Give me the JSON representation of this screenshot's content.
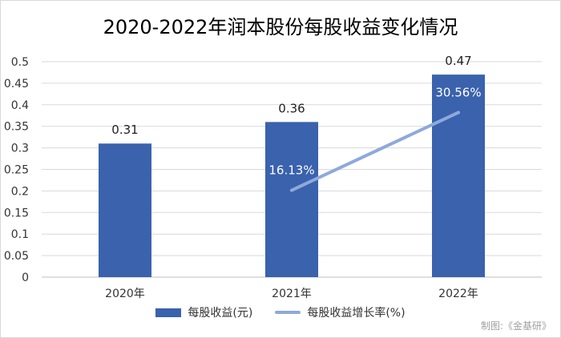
{
  "chart_data": {
    "type": "bar",
    "title": "2020-2022年润本股份每股收益变化情况",
    "categories": [
      "2020年",
      "2021年",
      "2022年"
    ],
    "series": [
      {
        "name": "每股收益(元)",
        "type": "bar",
        "values": [
          0.31,
          0.36,
          0.47
        ],
        "data_labels": [
          "0.31",
          "0.36",
          "0.47"
        ],
        "color": "#3a62ad"
      },
      {
        "name": "每股收益增长率(%)",
        "type": "line",
        "values": [
          null,
          16.13,
          30.56
        ],
        "data_labels": [
          null,
          "16.13%",
          "30.56%"
        ],
        "color": "#8ea9db"
      }
    ],
    "y_ticks": [
      "0",
      "0.05",
      "0.1",
      "0.15",
      "0.2",
      "0.25",
      "0.3",
      "0.35",
      "0.4",
      "0.45",
      "0.5"
    ],
    "ylim": [
      0,
      0.5
    ],
    "grid": true,
    "legend_position": "bottom"
  },
  "source_note": "制图:《金基研》",
  "colors": {
    "grid": "#d9d9d9",
    "axis": "#bfbfbf"
  }
}
